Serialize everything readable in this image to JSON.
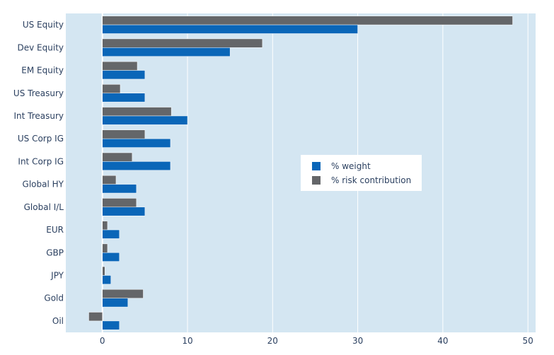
{
  "chart_data": {
    "type": "bar",
    "orientation": "horizontal",
    "categories": [
      "US Equity",
      "Dev Equity",
      "EM Equity",
      "US Treasury",
      "Int Treasury",
      "US Corp IG",
      "Int Corp IG",
      "Global HY",
      "Global I/L",
      "EUR",
      "GBP",
      "JPY",
      "Gold",
      "Oil"
    ],
    "series": [
      {
        "name": "% weight",
        "color": "#0a66b8",
        "values": [
          30,
          15,
          5,
          5,
          10,
          8,
          8,
          4,
          5,
          2,
          2,
          1,
          3,
          2
        ]
      },
      {
        "name": "% risk contribution",
        "color": "#646669",
        "values": [
          48.2,
          18.8,
          4.1,
          2.1,
          8.1,
          5.0,
          3.5,
          1.6,
          4.0,
          0.6,
          0.6,
          0.3,
          4.8,
          -1.6
        ]
      }
    ],
    "xlim": [
      -4.3,
      50.9
    ],
    "xticks": [
      0,
      10,
      20,
      30,
      40,
      50
    ],
    "title": "",
    "xlabel": "",
    "ylabel": "",
    "grid": true,
    "legend_position": "center-right",
    "plot_background": "#d4e6f2"
  }
}
